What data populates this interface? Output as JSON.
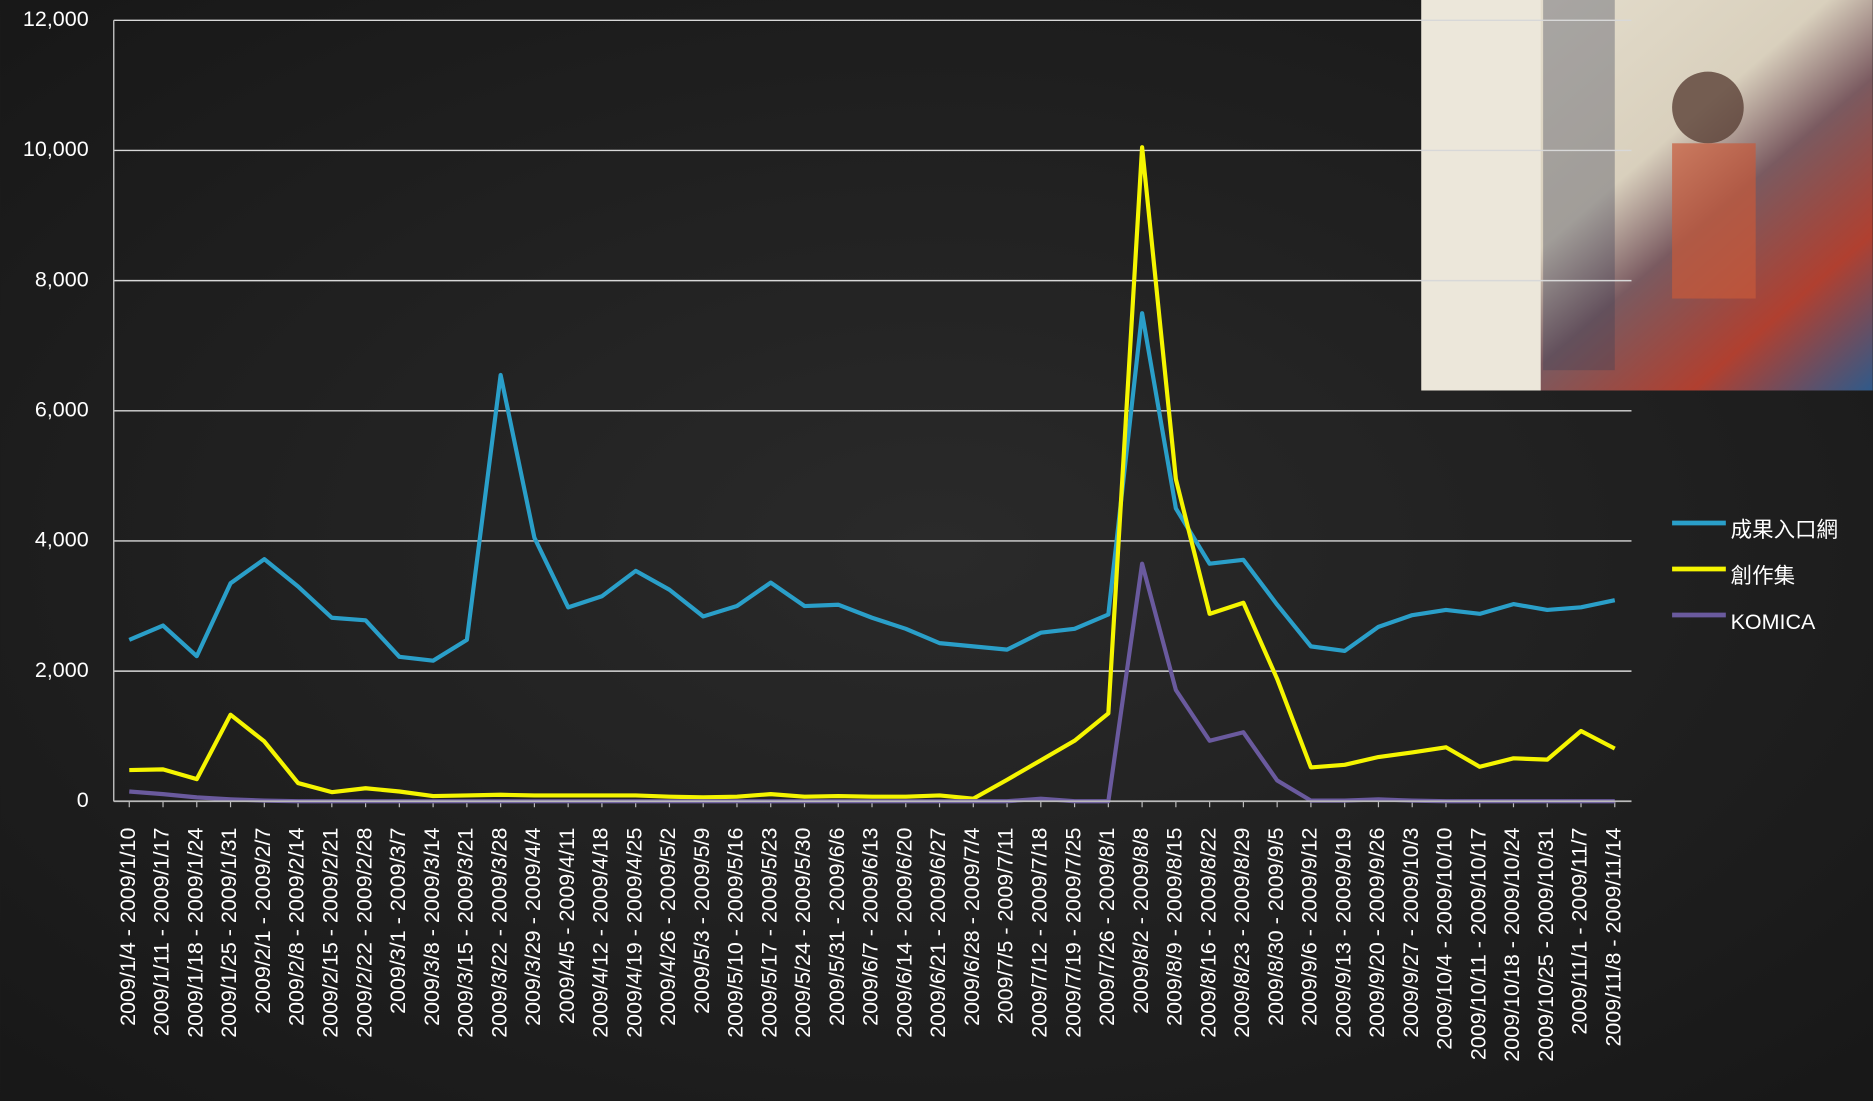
{
  "chart_data": {
    "type": "line",
    "categories": [
      "2009/1/4 - 2009/1/10",
      "2009/1/11 - 2009/1/17",
      "2009/1/18 - 2009/1/24",
      "2009/1/25 - 2009/1/31",
      "2009/2/1 - 2009/2/7",
      "2009/2/8 - 2009/2/14",
      "2009/2/15 - 2009/2/21",
      "2009/2/22 - 2009/2/28",
      "2009/3/1 - 2009/3/7",
      "2009/3/8 - 2009/3/14",
      "2009/3/15 - 2009/3/21",
      "2009/3/22 - 2009/3/28",
      "2009/3/29 - 2009/4/4",
      "2009/4/5 - 2009/4/11",
      "2009/4/12 - 2009/4/18",
      "2009/4/19 - 2009/4/25",
      "2009/4/26 - 2009/5/2",
      "2009/5/3 - 2009/5/9",
      "2009/5/10 - 2009/5/16",
      "2009/5/17 - 2009/5/23",
      "2009/5/24 - 2009/5/30",
      "2009/5/31 - 2009/6/6",
      "2009/6/7 - 2009/6/13",
      "2009/6/14 - 2009/6/20",
      "2009/6/21 - 2009/6/27",
      "2009/6/28 - 2009/7/4",
      "2009/7/5 - 2009/7/11",
      "2009/7/12 - 2009/7/18",
      "2009/7/19 - 2009/7/25",
      "2009/7/26 - 2009/8/1",
      "2009/8/2 - 2009/8/8",
      "2009/8/9 - 2009/8/15",
      "2009/8/16 - 2009/8/22",
      "2009/8/23 - 2009/8/29",
      "2009/8/30 - 2009/9/5",
      "2009/9/6 - 2009/9/12",
      "2009/9/13 - 2009/9/19",
      "2009/9/20 - 2009/9/26",
      "2009/9/27 - 2009/10/3",
      "2009/10/4 - 2009/10/10",
      "2009/10/11 - 2009/10/17",
      "2009/10/18 - 2009/10/24",
      "2009/10/25 - 2009/10/31",
      "2009/11/1 - 2009/11/7",
      "2009/11/8 - 2009/11/14"
    ],
    "series": [
      {
        "name": "成果入口網",
        "color": "#2a9fc9",
        "values": [
          2480,
          2700,
          2230,
          3350,
          3720,
          3300,
          2820,
          2780,
          2220,
          2160,
          2480,
          6550,
          4050,
          2980,
          3150,
          3540,
          3250,
          2840,
          3000,
          3360,
          3000,
          3020,
          2820,
          2650,
          2430,
          2380,
          2330,
          2590,
          2650,
          2870,
          7500,
          4500,
          3650,
          3710,
          3020,
          2380,
          2310,
          2680,
          2860,
          2940,
          2880,
          3030,
          2940,
          2980,
          3090
        ]
      },
      {
        "name": "創作集",
        "color": "#f5f500",
        "values": [
          480,
          490,
          340,
          1330,
          920,
          280,
          140,
          200,
          150,
          80,
          90,
          100,
          90,
          90,
          90,
          90,
          70,
          60,
          70,
          110,
          70,
          80,
          70,
          70,
          90,
          40,
          330,
          630,
          930,
          1350,
          10050,
          4950,
          2880,
          3050,
          1880,
          520,
          560,
          680,
          750,
          830,
          530,
          660,
          640,
          1080,
          810
        ]
      },
      {
        "name": "KOMICA",
        "color": "#6a5a9e",
        "values": [
          150,
          110,
          60,
          30,
          10,
          0,
          0,
          0,
          0,
          0,
          0,
          0,
          0,
          0,
          0,
          0,
          0,
          0,
          0,
          0,
          0,
          0,
          0,
          0,
          0,
          0,
          0,
          40,
          0,
          0,
          3650,
          1710,
          930,
          1060,
          320,
          10,
          10,
          30,
          10,
          0,
          0,
          0,
          0,
          0,
          0
        ]
      }
    ],
    "ylim": [
      0,
      12000
    ],
    "yticks": [
      0,
      {
        "value": 2000,
        "label": "2,000"
      },
      {
        "value": 4000,
        "label": "4,000"
      },
      {
        "value": 6000,
        "label": "6,000"
      },
      {
        "value": 8000,
        "label": "8,000"
      },
      {
        "value": 10000,
        "label": "10,000"
      },
      {
        "value": 12000,
        "label": "12,000"
      }
    ],
    "grid": true
  }
}
